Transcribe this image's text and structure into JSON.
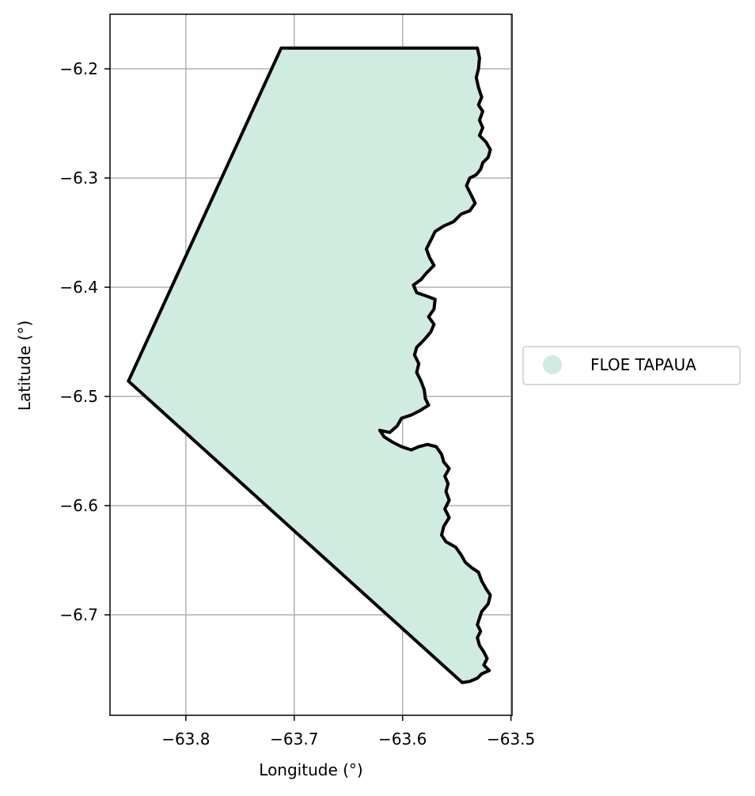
{
  "chart_data": {
    "type": "map",
    "title": "",
    "xlabel": "Longitude (°)",
    "ylabel": "Latitude (°)",
    "xlim": [
      -63.87,
      -63.499
    ],
    "ylim": [
      -6.792,
      -6.15
    ],
    "grid": true,
    "x_ticks": [
      -63.8,
      -63.7,
      -63.6,
      -63.5
    ],
    "x_tick_labels": [
      "−63.8",
      "−63.7",
      "−63.6",
      "−63.5"
    ],
    "y_ticks": [
      -6.2,
      -6.3,
      -6.4,
      -6.5,
      -6.6,
      -6.7
    ],
    "y_tick_labels": [
      "−6.2",
      "−6.3",
      "−6.4",
      "−6.5",
      "−6.6",
      "−6.7"
    ],
    "legend": {
      "placement": "outside-right",
      "entries": [
        "FLOE TAPAUA"
      ]
    },
    "fill_color": "#d0ebdf",
    "outline_color": "#000000",
    "grid_color": "#b0b0b0",
    "regions": [
      {
        "name": "FLOE TAPAUA",
        "boundary": [
          [
            -63.712,
            -6.181
          ],
          [
            -63.531,
            -6.181
          ],
          [
            -63.529,
            -6.19
          ],
          [
            -63.53,
            -6.2
          ],
          [
            -63.532,
            -6.208
          ],
          [
            -63.53,
            -6.217
          ],
          [
            -63.527,
            -6.226
          ],
          [
            -63.53,
            -6.233
          ],
          [
            -63.526,
            -6.239
          ],
          [
            -63.529,
            -6.247
          ],
          [
            -63.526,
            -6.254
          ],
          [
            -63.529,
            -6.261
          ],
          [
            -63.523,
            -6.267
          ],
          [
            -63.519,
            -6.274
          ],
          [
            -63.521,
            -6.281
          ],
          [
            -63.526,
            -6.286
          ],
          [
            -63.528,
            -6.292
          ],
          [
            -63.532,
            -6.297
          ],
          [
            -63.538,
            -6.3
          ],
          [
            -63.541,
            -6.307
          ],
          [
            -63.537,
            -6.315
          ],
          [
            -63.533,
            -6.323
          ],
          [
            -63.538,
            -6.33
          ],
          [
            -63.546,
            -6.333
          ],
          [
            -63.553,
            -6.34
          ],
          [
            -63.562,
            -6.344
          ],
          [
            -63.57,
            -6.349
          ],
          [
            -63.574,
            -6.357
          ],
          [
            -63.578,
            -6.365
          ],
          [
            -63.575,
            -6.373
          ],
          [
            -63.571,
            -6.38
          ],
          [
            -63.578,
            -6.387
          ],
          [
            -63.583,
            -6.393
          ],
          [
            -63.59,
            -6.398
          ],
          [
            -63.587,
            -6.405
          ],
          [
            -63.578,
            -6.408
          ],
          [
            -63.57,
            -6.411
          ],
          [
            -63.571,
            -6.42
          ],
          [
            -63.576,
            -6.427
          ],
          [
            -63.571,
            -6.434
          ],
          [
            -63.574,
            -6.441
          ],
          [
            -63.58,
            -6.448
          ],
          [
            -63.587,
            -6.455
          ],
          [
            -63.589,
            -6.462
          ],
          [
            -63.585,
            -6.47
          ],
          [
            -63.587,
            -6.478
          ],
          [
            -63.583,
            -6.486
          ],
          [
            -63.58,
            -6.494
          ],
          [
            -63.579,
            -6.502
          ],
          [
            -63.576,
            -6.508
          ],
          [
            -63.584,
            -6.513
          ],
          [
            -63.592,
            -6.517
          ],
          [
            -63.601,
            -6.52
          ],
          [
            -63.605,
            -6.527
          ],
          [
            -63.612,
            -6.533
          ],
          [
            -63.621,
            -6.531
          ],
          [
            -63.617,
            -6.537
          ],
          [
            -63.609,
            -6.542
          ],
          [
            -63.601,
            -6.546
          ],
          [
            -63.592,
            -6.549
          ],
          [
            -63.585,
            -6.546
          ],
          [
            -63.577,
            -6.544
          ],
          [
            -63.569,
            -6.546
          ],
          [
            -63.564,
            -6.553
          ],
          [
            -63.562,
            -6.56
          ],
          [
            -63.557,
            -6.566
          ],
          [
            -63.561,
            -6.573
          ],
          [
            -63.558,
            -6.58
          ],
          [
            -63.56,
            -6.587
          ],
          [
            -63.557,
            -6.595
          ],
          [
            -63.561,
            -6.603
          ],
          [
            -63.557,
            -6.611
          ],
          [
            -63.562,
            -6.619
          ],
          [
            -63.564,
            -6.627
          ],
          [
            -63.56,
            -6.633
          ],
          [
            -63.551,
            -6.638
          ],
          [
            -63.546,
            -6.645
          ],
          [
            -63.542,
            -6.652
          ],
          [
            -63.536,
            -6.657
          ],
          [
            -63.53,
            -6.661
          ],
          [
            -63.527,
            -6.669
          ],
          [
            -63.523,
            -6.676
          ],
          [
            -63.519,
            -6.682
          ],
          [
            -63.521,
            -6.69
          ],
          [
            -63.527,
            -6.697
          ],
          [
            -63.529,
            -6.703
          ],
          [
            -63.531,
            -6.709
          ],
          [
            -63.528,
            -6.715
          ],
          [
            -63.531,
            -6.721
          ],
          [
            -63.529,
            -6.728
          ],
          [
            -63.525,
            -6.734
          ],
          [
            -63.522,
            -6.74
          ],
          [
            -63.525,
            -6.746
          ],
          [
            -63.52,
            -6.751
          ],
          [
            -63.527,
            -6.754
          ],
          [
            -63.531,
            -6.758
          ],
          [
            -63.538,
            -6.761
          ],
          [
            -63.545,
            -6.762
          ],
          [
            -63.853,
            -6.486
          ]
        ]
      }
    ]
  }
}
